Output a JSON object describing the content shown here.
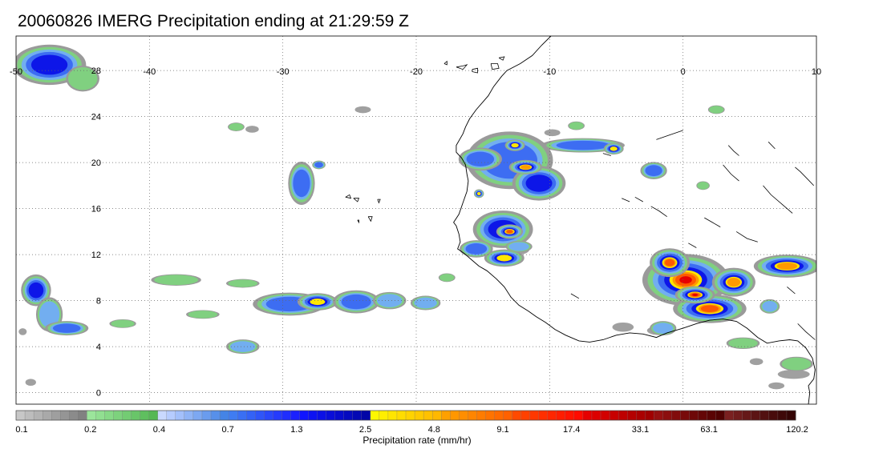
{
  "title": "20060826 IMERG Precipitation ending at 21:29:59 Z",
  "map": {
    "lon_range": [
      -50,
      10
    ],
    "lat_range": [
      -1,
      31
    ],
    "lon_ticks": [
      -50,
      -40,
      -30,
      -20,
      -10,
      0,
      10
    ],
    "lat_ticks": [
      0,
      4,
      8,
      12,
      16,
      20,
      24,
      28
    ],
    "lon_labels": [
      "-50",
      "-40",
      "-30",
      "-20",
      "-10",
      "0",
      "10"
    ],
    "lat_labels": [
      "0",
      "4",
      "8",
      "12",
      "16",
      "20",
      "24",
      "28"
    ],
    "grid": "dotted",
    "coastline_color": "#000000",
    "coastline": [
      [
        -9.9,
        31.0
      ],
      [
        -10.6,
        30.2
      ],
      [
        -11.3,
        29.3
      ],
      [
        -12.2,
        28.6
      ],
      [
        -13.2,
        28.0
      ],
      [
        -13.6,
        27.5
      ],
      [
        -14.2,
        26.6
      ],
      [
        -14.6,
        25.8
      ],
      [
        -15.5,
        24.6
      ],
      [
        -16.0,
        23.8
      ],
      [
        -16.3,
        23.1
      ],
      [
        -16.5,
        22.5
      ],
      [
        -17.0,
        21.5
      ],
      [
        -17.0,
        20.9
      ],
      [
        -16.6,
        20.4
      ],
      [
        -16.3,
        19.8
      ],
      [
        -16.2,
        19.0
      ],
      [
        -16.1,
        18.4
      ],
      [
        -16.2,
        17.5
      ],
      [
        -16.5,
        16.5
      ],
      [
        -16.8,
        15.5
      ],
      [
        -17.2,
        14.8
      ],
      [
        -17.0,
        14.5
      ],
      [
        -16.8,
        13.8
      ],
      [
        -16.7,
        13.1
      ],
      [
        -16.9,
        12.5
      ],
      [
        -16.4,
        12.1
      ],
      [
        -15.9,
        11.6
      ],
      [
        -15.3,
        11.0
      ],
      [
        -14.7,
        10.6
      ],
      [
        -14.0,
        9.9
      ],
      [
        -13.4,
        9.2
      ],
      [
        -12.9,
        8.3
      ],
      [
        -12.3,
        7.6
      ],
      [
        -11.6,
        7.1
      ],
      [
        -11.0,
        6.6
      ],
      [
        -10.3,
        6.1
      ],
      [
        -9.6,
        5.5
      ],
      [
        -8.8,
        5.0
      ],
      [
        -7.8,
        4.5
      ],
      [
        -7.0,
        4.4
      ],
      [
        -6.0,
        4.6
      ],
      [
        -5.0,
        5.0
      ],
      [
        -4.0,
        5.2
      ],
      [
        -3.0,
        5.1
      ],
      [
        -2.0,
        4.8
      ],
      [
        -1.2,
        5.2
      ],
      [
        0.0,
        5.6
      ],
      [
        1.0,
        6.0
      ],
      [
        2.0,
        6.3
      ],
      [
        3.0,
        6.4
      ],
      [
        4.0,
        6.2
      ],
      [
        4.8,
        5.6
      ],
      [
        5.6,
        4.8
      ],
      [
        6.3,
        4.3
      ],
      [
        7.2,
        4.5
      ],
      [
        8.0,
        4.6
      ],
      [
        8.6,
        4.5
      ],
      [
        9.2,
        3.9
      ],
      [
        9.7,
        3.0
      ],
      [
        9.9,
        2.0
      ],
      [
        9.8,
        1.2
      ],
      [
        9.4,
        0.6
      ],
      [
        9.5,
        0.0
      ],
      [
        9.4,
        -1.0
      ]
    ],
    "islands": [
      [
        [
          -17.0,
          28.3
        ],
        [
          -16.5,
          28.4
        ],
        [
          -16.2,
          28.5
        ],
        [
          -16.5,
          28.1
        ],
        [
          -17.0,
          28.3
        ]
      ],
      [
        [
          -15.8,
          28.1
        ],
        [
          -15.4,
          28.2
        ],
        [
          -15.4,
          27.8
        ],
        [
          -15.8,
          27.9
        ],
        [
          -15.8,
          28.1
        ]
      ],
      [
        [
          -14.4,
          28.6
        ],
        [
          -13.9,
          28.6
        ],
        [
          -13.8,
          28.2
        ],
        [
          -14.3,
          28.1
        ],
        [
          -14.4,
          28.6
        ]
      ],
      [
        [
          -13.8,
          29.1
        ],
        [
          -13.4,
          29.2
        ],
        [
          -13.5,
          28.9
        ],
        [
          -13.8,
          29.1
        ]
      ],
      [
        [
          -17.9,
          28.6
        ],
        [
          -17.7,
          28.8
        ],
        [
          -17.7,
          28.5
        ],
        [
          -17.9,
          28.6
        ]
      ],
      [
        [
          -24.7,
          16.9
        ],
        [
          -24.3,
          16.9
        ],
        [
          -24.4,
          16.6
        ],
        [
          -24.7,
          16.9
        ]
      ],
      [
        [
          -25.3,
          17.0
        ],
        [
          -25.0,
          17.2
        ],
        [
          -24.9,
          16.9
        ],
        [
          -25.3,
          17.0
        ]
      ],
      [
        [
          -22.9,
          16.8
        ],
        [
          -22.7,
          16.8
        ],
        [
          -22.8,
          16.5
        ],
        [
          -22.9,
          16.8
        ]
      ],
      [
        [
          -23.6,
          15.3
        ],
        [
          -23.3,
          15.3
        ],
        [
          -23.4,
          14.9
        ],
        [
          -23.6,
          15.3
        ]
      ],
      [
        [
          -24.4,
          15.0
        ],
        [
          -24.3,
          15.0
        ],
        [
          -24.3,
          14.8
        ],
        [
          -24.4,
          15.0
        ]
      ],
      [
        [
          -17.0,
          32.8
        ],
        [
          -16.7,
          32.8
        ],
        [
          -16.8,
          32.6
        ],
        [
          -17.0,
          32.8
        ]
      ]
    ],
    "land_border_fragments": [
      [
        [
          -2.0,
          22.0
        ],
        [
          -1.0,
          22.4
        ],
        [
          0.0,
          22.8
        ]
      ],
      [
        [
          3.0,
          19.8
        ],
        [
          3.6,
          19.0
        ],
        [
          4.2,
          18.4
        ]
      ],
      [
        [
          6.0,
          18.0
        ],
        [
          6.6,
          17.2
        ],
        [
          7.4,
          16.4
        ],
        [
          8.2,
          15.6
        ]
      ],
      [
        [
          4.0,
          14.0
        ],
        [
          4.8,
          13.4
        ],
        [
          5.6,
          13.1
        ]
      ],
      [
        [
          8.4,
          19.6
        ],
        [
          8.8,
          19.2
        ],
        [
          9.3,
          18.6
        ],
        [
          9.8,
          18.0
        ]
      ],
      [
        [
          -2.4,
          16.2
        ],
        [
          -1.8,
          15.8
        ],
        [
          -1.2,
          15.3
        ]
      ],
      [
        [
          -3.6,
          17.0
        ],
        [
          -3.0,
          16.6
        ]
      ],
      [
        [
          1.6,
          15.2
        ],
        [
          2.2,
          14.8
        ],
        [
          2.8,
          14.4
        ]
      ],
      [
        [
          3.4,
          21.5
        ],
        [
          3.8,
          21.0
        ],
        [
          4.2,
          20.6
        ]
      ],
      [
        [
          6.4,
          21.8
        ],
        [
          6.9,
          21.2
        ]
      ],
      [
        [
          -6.0,
          20.8
        ],
        [
          -5.4,
          20.6
        ]
      ],
      [
        [
          -4.6,
          16.9
        ],
        [
          -4.0,
          16.6
        ]
      ],
      [
        [
          0.4,
          13.0
        ],
        [
          1.0,
          12.6
        ]
      ],
      [
        [
          7.8,
          9.2
        ],
        [
          8.4,
          8.6
        ]
      ],
      [
        [
          -8.4,
          8.6
        ],
        [
          -7.8,
          8.2
        ]
      ],
      [
        [
          8.6,
          6.0
        ],
        [
          9.2,
          5.3
        ],
        [
          9.9,
          4.6
        ]
      ]
    ]
  },
  "precip": {
    "storms": [
      {
        "lon": -47.5,
        "lat": 28.5,
        "rx": 2.2,
        "ry": 1.4,
        "peak": 4
      },
      {
        "lon": -45.0,
        "lat": 27.3,
        "rx": 1.0,
        "ry": 0.9,
        "peak": 1
      },
      {
        "lon": -28.6,
        "lat": 18.2,
        "rx": 0.8,
        "ry": 1.5,
        "peak": 3
      },
      {
        "lon": -27.3,
        "lat": 19.8,
        "rx": 0.4,
        "ry": 0.3,
        "peak": 3
      },
      {
        "lon": -48.5,
        "lat": 8.9,
        "rx": 0.9,
        "ry": 1.1,
        "peak": 4
      },
      {
        "lon": -47.5,
        "lat": 6.8,
        "rx": 0.8,
        "ry": 1.2,
        "peak": 2
      },
      {
        "lon": -46.2,
        "lat": 5.6,
        "rx": 1.3,
        "ry": 0.5,
        "peak": 3
      },
      {
        "lon": -42.0,
        "lat": 6.0,
        "rx": 0.8,
        "ry": 0.3,
        "peak": 1
      },
      {
        "lon": -33.0,
        "lat": 4.0,
        "rx": 1.0,
        "ry": 0.5,
        "peak": 2
      },
      {
        "lon": -29.5,
        "lat": 7.7,
        "rx": 2.2,
        "ry": 0.8,
        "peak": 3
      },
      {
        "lon": -27.4,
        "lat": 7.9,
        "rx": 1.2,
        "ry": 0.6,
        "peak": 5
      },
      {
        "lon": -24.5,
        "lat": 7.9,
        "rx": 1.4,
        "ry": 0.8,
        "peak": 3
      },
      {
        "lon": -22.0,
        "lat": 8.0,
        "rx": 1.0,
        "ry": 0.6,
        "peak": 2
      },
      {
        "lon": -19.3,
        "lat": 7.8,
        "rx": 0.9,
        "ry": 0.5,
        "peak": 2
      },
      {
        "lon": -38.0,
        "lat": 9.8,
        "rx": 1.5,
        "ry": 0.4,
        "peak": 1
      },
      {
        "lon": -33.0,
        "lat": 9.5,
        "rx": 1.0,
        "ry": 0.3,
        "peak": 1
      },
      {
        "lon": -36.0,
        "lat": 6.8,
        "rx": 1.0,
        "ry": 0.3,
        "peak": 1
      },
      {
        "lon": -13.0,
        "lat": 20.2,
        "rx": 2.6,
        "ry": 2.0,
        "peak": 3
      },
      {
        "lon": -10.8,
        "lat": 18.2,
        "rx": 1.6,
        "ry": 1.2,
        "peak": 4
      },
      {
        "lon": -11.8,
        "lat": 19.6,
        "rx": 1.0,
        "ry": 0.5,
        "peak": 6
      },
      {
        "lon": -15.2,
        "lat": 20.3,
        "rx": 1.3,
        "ry": 0.8,
        "peak": 3
      },
      {
        "lon": -12.6,
        "lat": 21.5,
        "rx": 0.6,
        "ry": 0.4,
        "peak": 5
      },
      {
        "lon": -7.5,
        "lat": 21.5,
        "rx": 2.5,
        "ry": 0.5,
        "peak": 3
      },
      {
        "lon": -5.2,
        "lat": 21.2,
        "rx": 0.6,
        "ry": 0.4,
        "peak": 5
      },
      {
        "lon": -2.2,
        "lat": 19.3,
        "rx": 0.8,
        "ry": 0.6,
        "peak": 3
      },
      {
        "lon": -13.5,
        "lat": 14.2,
        "rx": 1.8,
        "ry": 1.3,
        "peak": 4
      },
      {
        "lon": -13.0,
        "lat": 14.0,
        "rx": 0.8,
        "ry": 0.5,
        "peak": 7
      },
      {
        "lon": -13.4,
        "lat": 11.7,
        "rx": 1.2,
        "ry": 0.6,
        "peak": 5
      },
      {
        "lon": -15.5,
        "lat": 12.5,
        "rx": 1.0,
        "ry": 0.6,
        "peak": 3
      },
      {
        "lon": -15.3,
        "lat": 17.3,
        "rx": 0.3,
        "ry": 0.3,
        "peak": 5
      },
      {
        "lon": -12.3,
        "lat": 12.7,
        "rx": 0.8,
        "ry": 0.4,
        "peak": 2
      },
      {
        "lon": 0.2,
        "lat": 9.8,
        "rx": 2.6,
        "ry": 1.8,
        "peak": 8
      },
      {
        "lon": -1.0,
        "lat": 11.3,
        "rx": 1.2,
        "ry": 1.0,
        "peak": 7
      },
      {
        "lon": 2.0,
        "lat": 7.3,
        "rx": 2.2,
        "ry": 1.0,
        "peak": 7
      },
      {
        "lon": 0.9,
        "lat": 8.5,
        "rx": 1.2,
        "ry": 0.6,
        "peak": 8
      },
      {
        "lon": 3.8,
        "lat": 9.6,
        "rx": 1.3,
        "ry": 1.0,
        "peak": 6
      },
      {
        "lon": 7.8,
        "lat": 11.0,
        "rx": 2.0,
        "ry": 0.8,
        "peak": 6
      },
      {
        "lon": 6.5,
        "lat": 7.5,
        "rx": 0.6,
        "ry": 0.5,
        "peak": 2
      },
      {
        "lon": 4.5,
        "lat": 4.3,
        "rx": 1.0,
        "ry": 0.4,
        "peak": 1
      },
      {
        "lon": 8.5,
        "lat": 2.5,
        "rx": 1.0,
        "ry": 0.5,
        "peak": 1
      },
      {
        "lon": -1.5,
        "lat": 5.6,
        "rx": 0.8,
        "ry": 0.5,
        "peak": 2
      },
      {
        "lon": 1.5,
        "lat": 18.0,
        "rx": 0.4,
        "ry": 0.3,
        "peak": 1
      },
      {
        "lon": 2.5,
        "lat": 24.6,
        "rx": 0.5,
        "ry": 0.3,
        "peak": 1
      },
      {
        "lon": -8.0,
        "lat": 23.2,
        "rx": 0.5,
        "ry": 0.3,
        "peak": 1
      },
      {
        "lon": -33.5,
        "lat": 23.1,
        "rx": 0.5,
        "ry": 0.3,
        "peak": 1
      },
      {
        "lon": -17.7,
        "lat": 10.0,
        "rx": 0.5,
        "ry": 0.3,
        "peak": 1
      }
    ],
    "gray_patches": [
      [
        -47.0,
        27.8,
        1.5,
        0.6
      ],
      [
        -24.0,
        24.6,
        0.6,
        0.3
      ],
      [
        -32.3,
        22.9,
        0.5,
        0.3
      ],
      [
        -12.3,
        12.5,
        0.8,
        0.5
      ],
      [
        -9.8,
        22.6,
        0.6,
        0.3
      ],
      [
        -4.5,
        5.7,
        0.8,
        0.4
      ],
      [
        -1.7,
        5.4,
        1.0,
        0.4
      ],
      [
        8.3,
        1.6,
        1.2,
        0.4
      ],
      [
        7.0,
        0.6,
        0.6,
        0.3
      ],
      [
        -49.5,
        5.3,
        0.3,
        0.3
      ],
      [
        -48.9,
        0.9,
        0.4,
        0.3
      ],
      [
        5.5,
        2.7,
        0.5,
        0.3
      ]
    ]
  },
  "colorbar": {
    "title": "Precipitation rate (mm/hr)",
    "labels": [
      "0.1",
      "0.2",
      "0.4",
      "0.7",
      "1.3",
      "2.5",
      "4.8",
      "9.1",
      "17.4",
      "33.1",
      "63.1",
      "120.2"
    ],
    "groups": [
      [
        "#c7c7c7",
        "#bdbdbd",
        "#b3b3b3",
        "#a9a9a9",
        "#9f9f9f",
        "#959595",
        "#8b8b8b",
        "#818181"
      ],
      [
        "#9be59b",
        "#91df91",
        "#87d987",
        "#7dd27d",
        "#73cc73",
        "#69c569",
        "#5fbf5f",
        "#55b855"
      ],
      [
        "#c9d9ff",
        "#b6ccff",
        "#a3c0fb",
        "#90b4f6",
        "#7da8f2",
        "#6a9cee",
        "#5790ea",
        "#4484e6"
      ],
      [
        "#3f7cf2",
        "#3a6ff4",
        "#3462f6",
        "#2f55f8",
        "#2a48fa",
        "#253bfc",
        "#202efd",
        "#1b21fe"
      ],
      [
        "#0f14ff",
        "#0d12f2",
        "#0b10e6",
        "#090ed9",
        "#070ccd",
        "#050ac0",
        "#0308b4",
        "#0106a7"
      ],
      [
        "#fff700",
        "#ffee00",
        "#ffe500",
        "#ffdc00",
        "#ffd300",
        "#ffca00",
        "#ffc100",
        "#ffb800"
      ],
      [
        "#ffa000",
        "#ff9700",
        "#ff8e00",
        "#ff8500",
        "#ff7c00",
        "#ff7300",
        "#ff6a00",
        "#ff6100"
      ],
      [
        "#ff4a00",
        "#ff4100",
        "#ff3800",
        "#ff2f00",
        "#ff2600",
        "#ff1d00",
        "#ff1400",
        "#ff0b00"
      ],
      [
        "#e60000",
        "#dc0000",
        "#d20000",
        "#c80000",
        "#be0000",
        "#b40000",
        "#aa0000",
        "#a00000"
      ],
      [
        "#961010",
        "#8c0e0e",
        "#820c0c",
        "#780a0a",
        "#6e0808",
        "#640606",
        "#5a0404",
        "#500202"
      ],
      [
        "#7a2020",
        "#701c1c",
        "#661818",
        "#5c1414",
        "#521010",
        "#480c0c",
        "#3e0808",
        "#340404"
      ]
    ]
  }
}
